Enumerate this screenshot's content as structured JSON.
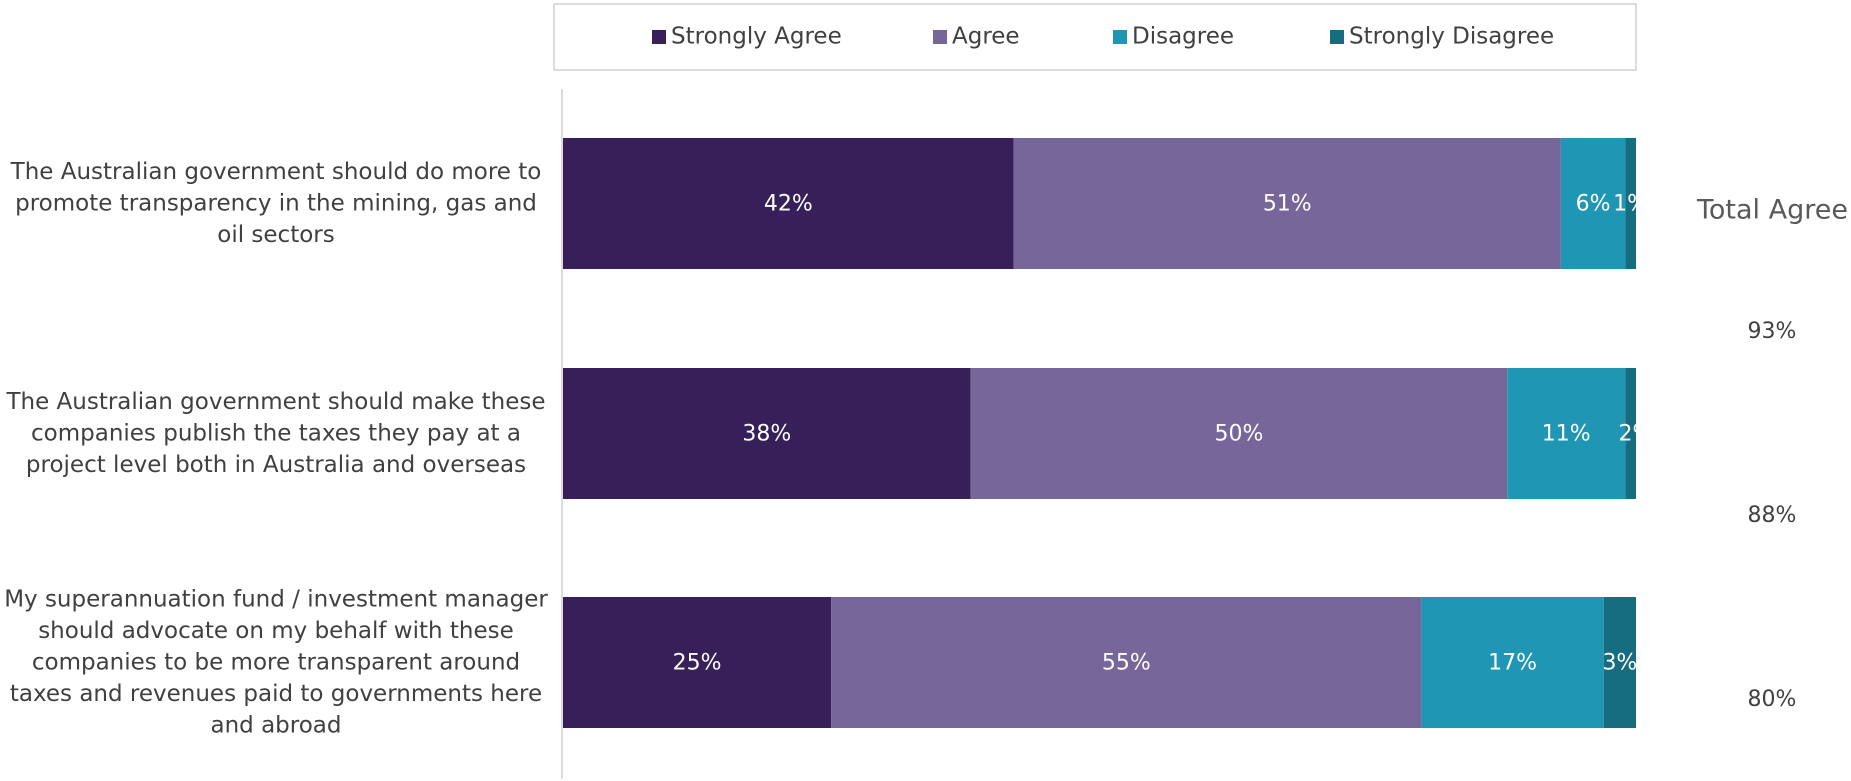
{
  "chart_data": {
    "type": "stacked-barh",
    "categories": [
      "The Australian government should do more to promote transparency in the mining, gas and oil sectors",
      "The Australian government should make these companies publish the taxes they pay at a project level both in Australia and overseas",
      "My superannuation fund / investment manager should advocate on my behalf with these companies to be more transparent around taxes and revenues paid to governments here and abroad"
    ],
    "series": [
      {
        "name": "Strongly Agree",
        "color": "#37205a",
        "values": [
          42,
          38,
          25
        ],
        "value_labels": [
          "42%",
          "38%",
          "25%"
        ]
      },
      {
        "name": "Agree",
        "color": "#776699",
        "values": [
          51,
          50,
          55
        ],
        "value_labels": [
          "51%",
          "50%",
          "55%"
        ]
      },
      {
        "name": "Disagree",
        "color": "#1f96b4",
        "values": [
          6,
          11,
          17
        ],
        "value_labels": [
          "6%",
          "11%",
          "17%"
        ]
      },
      {
        "name": "Strongly Disagree",
        "color": "#176d80",
        "values": [
          1,
          2,
          3
        ],
        "value_labels": [
          "1%",
          "2%",
          "3%"
        ]
      }
    ],
    "xlim": [
      0,
      100
    ],
    "legend": "top",
    "total_agree": {
      "title": "Total Agree",
      "values": [
        93,
        88,
        80
      ],
      "value_labels": [
        "93%",
        "88%",
        "80%"
      ]
    }
  }
}
